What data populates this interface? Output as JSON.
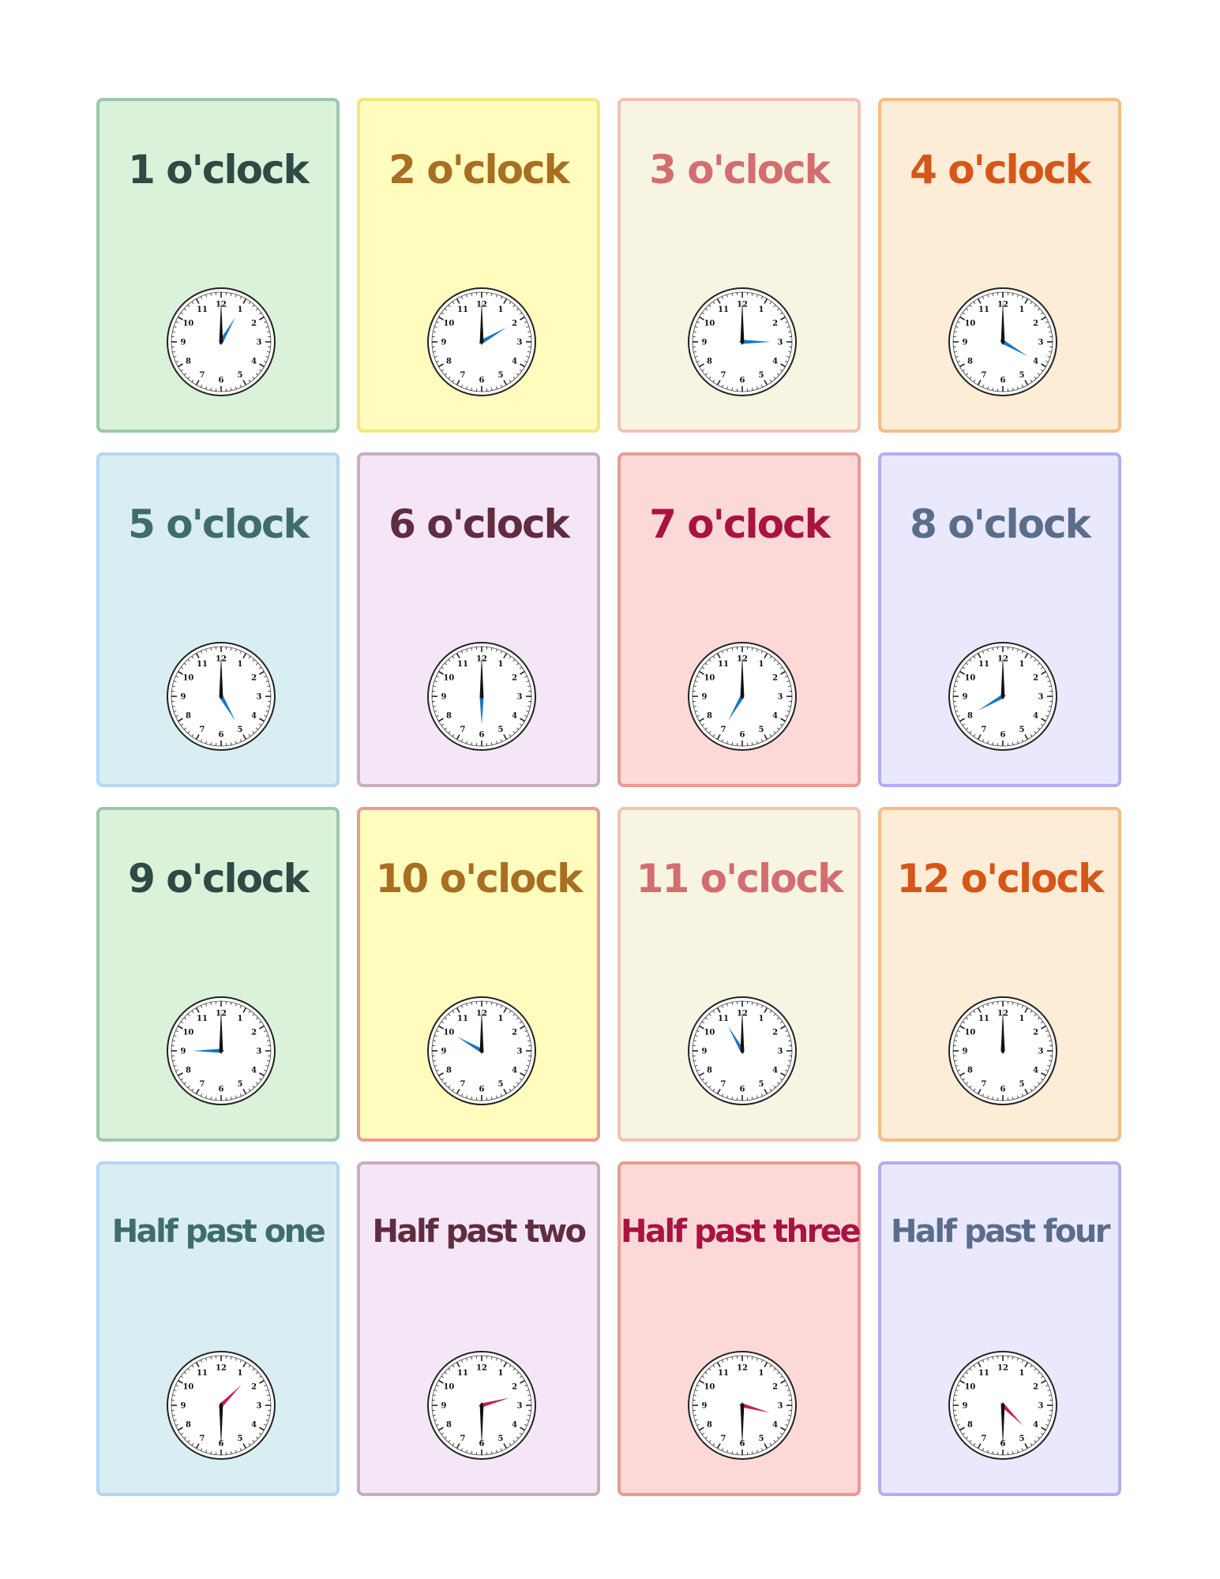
{
  "cards": [
    {
      "title": "1 o'clock",
      "hour": 1,
      "minute": 0,
      "bg": "#d9f2d9",
      "border": "#9cc7ae",
      "text": "#2e4a45",
      "hand": "#1577c2"
    },
    {
      "title": "2 o'clock",
      "hour": 2,
      "minute": 0,
      "bg": "#fffcbd",
      "border": "#f6e57f",
      "text": "#a86f23",
      "hand": "#1577c2"
    },
    {
      "title": "3 o'clock",
      "hour": 3,
      "minute": 0,
      "bg": "#f8f4e2",
      "border": "#f1c2b3",
      "text": "#d36d70",
      "hand": "#1577c2"
    },
    {
      "title": "4 o'clock",
      "hour": 4,
      "minute": 0,
      "bg": "#fdecd6",
      "border": "#f4bd86",
      "text": "#d55718",
      "hand": "#1577c2"
    },
    {
      "title": "5 o'clock",
      "hour": 5,
      "minute": 0,
      "bg": "#d8eef2",
      "border": "#b4d7f4",
      "text": "#3f6d6b",
      "hand": "#1577c2"
    },
    {
      "title": "6 o'clock",
      "hour": 6,
      "minute": 0,
      "bg": "#f5e6f7",
      "border": "#c8aebc",
      "text": "#602d3f",
      "hand": "#1577c2"
    },
    {
      "title": "7 o'clock",
      "hour": 7,
      "minute": 0,
      "bg": "#fcd9d7",
      "border": "#ea9c92",
      "text": "#a91342",
      "hand": "#1577c2"
    },
    {
      "title": "8 o'clock",
      "hour": 8,
      "minute": 0,
      "bg": "#eae8fd",
      "border": "#b2aff0",
      "text": "#5a6e8b",
      "hand": "#1577c2"
    },
    {
      "title": "9 o'clock",
      "hour": 9,
      "minute": 0,
      "bg": "#d9f2d9",
      "border": "#9cc7ae",
      "text": "#2e4a45",
      "hand": "#1577c2"
    },
    {
      "title": "10 o'clock",
      "hour": 10,
      "minute": 0,
      "bg": "#fffcbd",
      "border": "#ea9c92",
      "text": "#a86f23",
      "hand": "#1577c2"
    },
    {
      "title": "11 o'clock",
      "hour": 11,
      "minute": 0,
      "bg": "#f8f4e2",
      "border": "#f1c2b3",
      "text": "#d36d70",
      "hand": "#1577c2"
    },
    {
      "title": "12 o'clock",
      "hour": 12,
      "minute": 0,
      "bg": "#fdecd6",
      "border": "#f4bd86",
      "text": "#d55718",
      "hand": "#1577c2"
    },
    {
      "title": "Half past one",
      "hour": 1,
      "minute": 30,
      "bg": "#d8eef2",
      "border": "#b4d7f4",
      "text": "#3f6d6b",
      "hand": "#c71e51"
    },
    {
      "title": "Half past two",
      "hour": 2,
      "minute": 30,
      "bg": "#f5e6f7",
      "border": "#c8aebc",
      "text": "#602d3f",
      "hand": "#c71e51"
    },
    {
      "title": "Half past three",
      "hour": 3,
      "minute": 30,
      "bg": "#fcd9d7",
      "border": "#ea9c92",
      "text": "#a91342",
      "hand": "#c71e51"
    },
    {
      "title": "Half past four",
      "hour": 4,
      "minute": 30,
      "bg": "#eae8fd",
      "border": "#b2aff0",
      "text": "#5a6e8b",
      "hand": "#c71e51"
    }
  ],
  "clock_numerals": [
    "12",
    "1",
    "2",
    "3",
    "4",
    "5",
    "6",
    "7",
    "8",
    "9",
    "10",
    "11"
  ],
  "icons": {
    "clock": "clock-face-icon"
  }
}
